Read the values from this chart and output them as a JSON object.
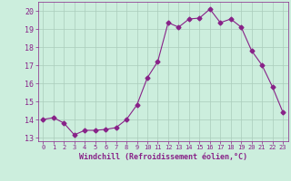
{
  "x": [
    0,
    1,
    2,
    3,
    4,
    5,
    6,
    7,
    8,
    9,
    10,
    11,
    12,
    13,
    14,
    15,
    16,
    17,
    18,
    19,
    20,
    21,
    22,
    23
  ],
  "y": [
    14.0,
    14.1,
    13.8,
    13.15,
    13.4,
    13.4,
    13.45,
    13.55,
    14.0,
    14.8,
    16.3,
    17.2,
    19.35,
    19.1,
    19.55,
    19.6,
    20.1,
    19.35,
    19.55,
    19.1,
    17.8,
    17.0,
    15.8,
    14.4
  ],
  "line_color": "#882288",
  "marker": "D",
  "marker_size": 2.5,
  "bg_color": "#cceedd",
  "grid_color": "#aaccbb",
  "xlabel": "Windchill (Refroidissement éolien,°C)",
  "xlabel_color": "#882288",
  "tick_color": "#882288",
  "ylim": [
    12.8,
    20.5
  ],
  "xlim": [
    -0.5,
    23.5
  ],
  "yticks": [
    13,
    14,
    15,
    16,
    17,
    18,
    19,
    20
  ],
  "xticks": [
    0,
    1,
    2,
    3,
    4,
    5,
    6,
    7,
    8,
    9,
    10,
    11,
    12,
    13,
    14,
    15,
    16,
    17,
    18,
    19,
    20,
    21,
    22,
    23
  ],
  "xtick_labels": [
    "0",
    "1",
    "2",
    "3",
    "4",
    "5",
    "6",
    "7",
    "8",
    "9",
    "10",
    "11",
    "12",
    "13",
    "14",
    "15",
    "16",
    "17",
    "18",
    "19",
    "20",
    "21",
    "22",
    "23"
  ]
}
